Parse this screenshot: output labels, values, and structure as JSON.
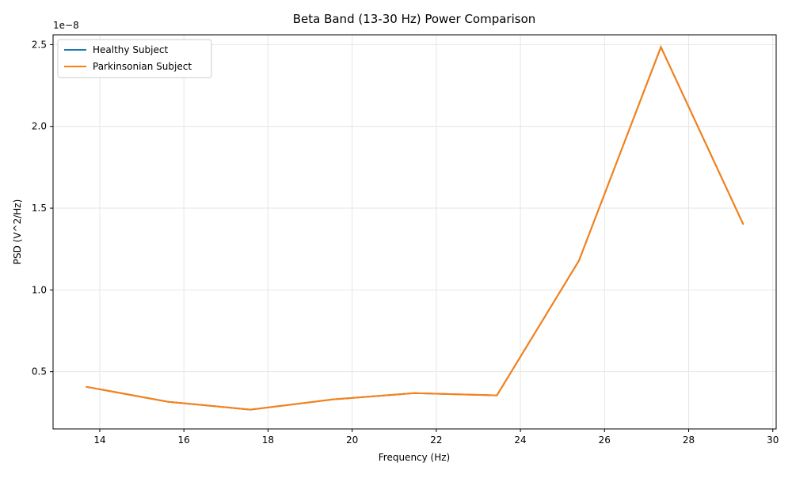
{
  "chart_data": {
    "type": "line",
    "title": "Beta Band (13-30 Hz) Power Comparison",
    "x_label": "Frequency (Hz)",
    "y_label": "PSD (V^2/Hz)",
    "offset_text": "1e−8",
    "x": [
      13.67,
      15.63,
      17.58,
      19.53,
      21.48,
      23.44,
      25.39,
      27.34,
      29.3
    ],
    "series": [
      {
        "name": "Healthy Subject",
        "color": "#1f77b4",
        "values": [
          4.08e-09,
          3.16e-09,
          2.68e-09,
          3.3e-09,
          3.69e-09,
          3.55e-09,
          1.178e-08,
          2.485e-08,
          1.4e-08
        ]
      },
      {
        "name": "Parkinsonian Subject",
        "color": "#ff7f0e",
        "values": [
          4.08e-09,
          3.16e-09,
          2.68e-09,
          3.3e-09,
          3.69e-09,
          3.55e-09,
          1.178e-08,
          2.485e-08,
          1.4e-08
        ]
      }
    ],
    "xlim": [
      12.89,
      30.08
    ],
    "xticks": [
      14,
      16,
      18,
      20,
      22,
      24,
      26,
      28,
      30
    ],
    "ylim": [
      1.5e-09,
      2.56e-08
    ],
    "yticks": [
      {
        "value": 5e-09,
        "label": "0.5"
      },
      {
        "value": 1e-08,
        "label": "1.0"
      },
      {
        "value": 1.5e-08,
        "label": "1.5"
      },
      {
        "value": 2e-08,
        "label": "2.0"
      },
      {
        "value": 2.5e-08,
        "label": "2.5"
      }
    ],
    "grid": true,
    "legend": "upper left"
  }
}
